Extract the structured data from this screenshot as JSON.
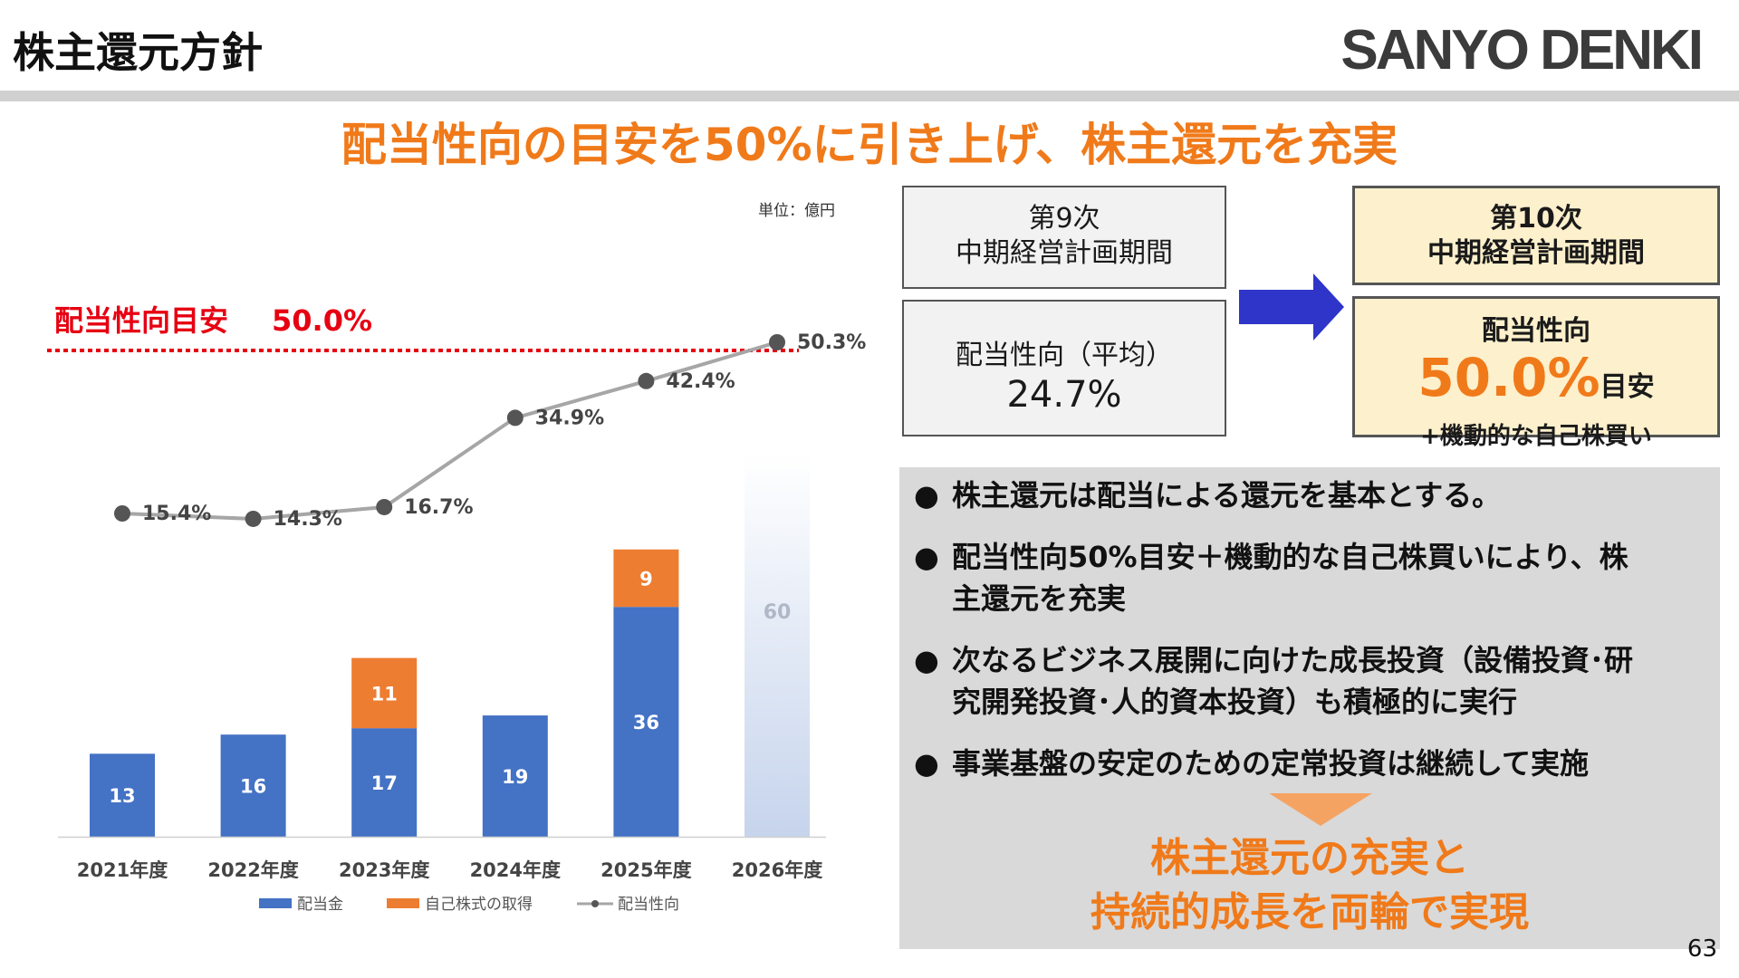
{
  "slide": {
    "title": "株主還元方針",
    "logo": "SANYO DENKI",
    "headline": "配当性向の目安を50%に引き上げ、株主還元を充実",
    "page_number": "63"
  },
  "boxes": {
    "period9": {
      "line1": "第9次",
      "line2": "中期経営計画期間"
    },
    "avg": {
      "label": "配当性向（平均）",
      "value": "24.7%"
    },
    "period10": {
      "line1": "第10次",
      "line2": "中期経営計画期間"
    },
    "policy": {
      "label": "配当性向",
      "big": "50.0%",
      "suffix": "目安",
      "sub": "+機動的な自己株買い"
    }
  },
  "bullets": [
    "株主還元は配当による還元を基本とする。",
    "配当性向50%目安＋機動的な自己株買いにより、株主還元を充実",
    "次なるビジネス展開に向けた成長投資（設備投資･研究開発投資･人的資本投資）も積極的に実行",
    "事業基盤の安定のための定常投資は継続して実施"
  ],
  "bullet_mark": "●",
  "conclusion": {
    "line1": "株主還元の充実と",
    "line2": "持続的成長を両輪で実現"
  },
  "colors": {
    "accent_orange": "#f07a1a",
    "dividend_blue": "#4472c4",
    "buyback_orange": "#ed7d31",
    "payout_line": "#a6a6a6",
    "target_red": "#e60012"
  },
  "chart_data": {
    "type": "bar",
    "stacked": true,
    "unit_label": "単位：億円",
    "categories": [
      "2021年度",
      "2022年度",
      "2023年度",
      "2024年度",
      "2025年度",
      "2026年度"
    ],
    "series": [
      {
        "name": "配当金",
        "values": [
          13,
          16,
          17,
          19,
          36,
          null
        ]
      },
      {
        "name": "自己株式の取得",
        "values": [
          null,
          null,
          11,
          null,
          9,
          null
        ]
      }
    ],
    "projection": {
      "category": "2026年度",
      "value": 60
    },
    "line_series": {
      "name": "配当性向",
      "values": [
        15.4,
        14.3,
        16.7,
        34.9,
        42.4,
        50.3
      ],
      "labels": [
        "15.4%",
        "14.3%",
        "16.7%",
        "34.9%",
        "42.4%",
        "50.3%"
      ]
    },
    "target": {
      "label": "配当性向目安",
      "value_label": "50.0%",
      "value": 50.0
    },
    "legend_position": "bottom",
    "grid": false
  }
}
